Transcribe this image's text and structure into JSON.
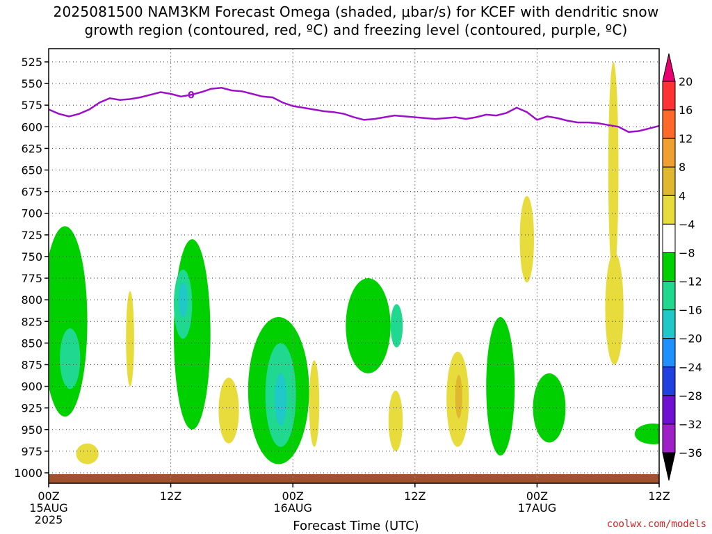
{
  "title_lines": [
    "2025081500 NAM3KM Forecast Omega (shaded, μbar/s) for KCEF with dendritic snow",
    "growth region (contoured, red, ºC) and freezing level (contoured, purple, ºC)"
  ],
  "credit": "coolwx.com/models",
  "chart_data": {
    "type": "heatmap",
    "title": "2025081500 NAM3KM Forecast Omega (shaded, μbar/s) for KCEF with dendritic snow growth region (contoured, red, ºC) and freezing level (contoured, purple, ºC)",
    "xlabel": "Forecast Time (UTC)",
    "ylabel": "",
    "x_range_hours": [
      0,
      60
    ],
    "x_ticks": [
      {
        "hour": 0,
        "label": [
          "00Z",
          "15AUG",
          "2025"
        ]
      },
      {
        "hour": 12,
        "label": [
          "12Z"
        ]
      },
      {
        "hour": 24,
        "label": [
          "00Z",
          "16AUG"
        ]
      },
      {
        "hour": 36,
        "label": [
          "12Z"
        ]
      },
      {
        "hour": 48,
        "label": [
          "00Z",
          "17AUG"
        ]
      },
      {
        "hour": 60,
        "label": [
          "12Z"
        ]
      }
    ],
    "y_range_hpa": [
      1012,
      508
    ],
    "y_ticks": [
      525,
      550,
      575,
      600,
      625,
      650,
      675,
      700,
      725,
      750,
      775,
      800,
      825,
      850,
      875,
      900,
      925,
      950,
      975,
      1000
    ],
    "grid": true,
    "colorbar": {
      "labels": [
        "20",
        "16",
        "12",
        "8",
        "4",
        "−4",
        "−8",
        "−12",
        "−16",
        "−20",
        "−24",
        "−28",
        "−32",
        "−36"
      ],
      "colors": [
        "#e8006e",
        "#ff3333",
        "#ff6a2a",
        "#f0a030",
        "#e0b830",
        "#e8dc3c",
        "#ffffff",
        "#00d000",
        "#20d890",
        "#20c8c8",
        "#1e90ff",
        "#2040e0",
        "#7010d0",
        "#a020c8",
        "#a8a8a8",
        "#000000"
      ]
    },
    "freezing_level": {
      "label": "0",
      "hours": [
        0,
        1,
        2,
        3,
        4,
        5,
        6,
        7,
        8,
        9,
        10,
        11,
        12,
        13,
        14,
        15,
        16,
        17,
        18,
        19,
        20,
        21,
        22,
        23,
        24,
        25,
        26,
        27,
        28,
        29,
        30,
        31,
        32,
        33,
        34,
        35,
        36,
        37,
        38,
        39,
        40,
        41,
        42,
        43,
        44,
        45,
        46,
        47,
        48,
        49,
        50,
        51,
        52,
        53,
        54,
        55,
        56,
        57,
        58,
        59,
        60
      ],
      "hpa": [
        580,
        585,
        588,
        585,
        580,
        572,
        567,
        569,
        568,
        566,
        563,
        560,
        562,
        565,
        563,
        560,
        556,
        555,
        558,
        559,
        562,
        565,
        566,
        572,
        576,
        578,
        580,
        582,
        583,
        585,
        589,
        592,
        591,
        589,
        587,
        588,
        589,
        590,
        591,
        590,
        589,
        591,
        589,
        586,
        587,
        584,
        578,
        583,
        592,
        588,
        590,
        593,
        595,
        595,
        596,
        598,
        600,
        606,
        605,
        602,
        599
      ]
    },
    "omega_regions": [
      {
        "category": "-4 to -8",
        "x_center_h": 1.6,
        "p_center_hpa": 825,
        "x_half_h": 2.2,
        "p_half_hpa": 110
      },
      {
        "category": "-8 to -12",
        "x_center_h": 2.1,
        "p_center_hpa": 868,
        "x_half_h": 1.0,
        "p_half_hpa": 35
      },
      {
        "category": "-4 to -8",
        "x_center_h": 14.1,
        "p_center_hpa": 840,
        "x_half_h": 1.8,
        "p_half_hpa": 110
      },
      {
        "category": "-8 to -12",
        "x_center_h": 13.2,
        "p_center_hpa": 805,
        "x_half_h": 0.9,
        "p_half_hpa": 40
      },
      {
        "category": "-12 to -16",
        "x_center_h": 13.2,
        "p_center_hpa": 800,
        "x_half_h": 0.45,
        "p_half_hpa": 20
      },
      {
        "category": "-4 to -8",
        "x_center_h": 22.6,
        "p_center_hpa": 905,
        "x_half_h": 3.0,
        "p_half_hpa": 85
      },
      {
        "category": "-8 to -12",
        "x_center_h": 22.8,
        "p_center_hpa": 910,
        "x_half_h": 1.5,
        "p_half_hpa": 60
      },
      {
        "category": "-12 to -16",
        "x_center_h": 22.8,
        "p_center_hpa": 915,
        "x_half_h": 0.6,
        "p_half_hpa": 30
      },
      {
        "category": "-4 to -8",
        "x_center_h": 31.4,
        "p_center_hpa": 830,
        "x_half_h": 2.2,
        "p_half_hpa": 55
      },
      {
        "category": "-8 to -12",
        "x_center_h": 34.2,
        "p_center_hpa": 830,
        "x_half_h": 0.6,
        "p_half_hpa": 25
      },
      {
        "category": "-4 to -8",
        "x_center_h": 44.4,
        "p_center_hpa": 900,
        "x_half_h": 1.4,
        "p_half_hpa": 80
      },
      {
        "category": "-4 to -8",
        "x_center_h": 49.2,
        "p_center_hpa": 925,
        "x_half_h": 1.6,
        "p_half_hpa": 40
      },
      {
        "category": "-4 to -8",
        "x_center_h": 59.4,
        "p_center_hpa": 955,
        "x_half_h": 1.8,
        "p_half_hpa": 12
      },
      {
        "category": "4 to 8",
        "x_center_h": 3.8,
        "p_center_hpa": 978,
        "x_half_h": 1.1,
        "p_half_hpa": 12
      },
      {
        "category": "4 to 8",
        "x_center_h": 8.0,
        "p_center_hpa": 845,
        "x_half_h": 0.4,
        "p_half_hpa": 55
      },
      {
        "category": "4 to 8",
        "x_center_h": 17.7,
        "p_center_hpa": 928,
        "x_half_h": 1.0,
        "p_half_hpa": 38
      },
      {
        "category": "4 to 8",
        "x_center_h": 26.1,
        "p_center_hpa": 920,
        "x_half_h": 0.5,
        "p_half_hpa": 50
      },
      {
        "category": "4 to 8",
        "x_center_h": 34.1,
        "p_center_hpa": 940,
        "x_half_h": 0.7,
        "p_half_hpa": 35
      },
      {
        "category": "4 to 8",
        "x_center_h": 40.2,
        "p_center_hpa": 915,
        "x_half_h": 1.1,
        "p_half_hpa": 55
      },
      {
        "category": "8 to 12",
        "x_center_h": 40.3,
        "p_center_hpa": 912,
        "x_half_h": 0.35,
        "p_half_hpa": 25
      },
      {
        "category": "4 to 8",
        "x_center_h": 47.0,
        "p_center_hpa": 730,
        "x_half_h": 0.7,
        "p_half_hpa": 50
      },
      {
        "category": "4 to 8",
        "x_center_h": 55.5,
        "p_center_hpa": 650,
        "x_half_h": 0.5,
        "p_half_hpa": 125
      },
      {
        "category": "4 to 8",
        "x_center_h": 55.6,
        "p_center_hpa": 810,
        "x_half_h": 0.9,
        "p_half_hpa": 65
      }
    ]
  }
}
